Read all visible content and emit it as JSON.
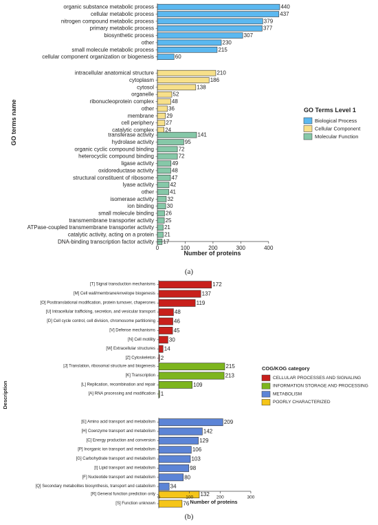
{
  "chart_data": [
    {
      "type": "bar",
      "orientation": "horizontal",
      "panel_label": "(a)",
      "ylabel": "GO terms name",
      "xlabel": "Number of proteins",
      "xlim": [
        0,
        460
      ],
      "xticks": [
        0,
        100,
        200,
        300,
        400
      ],
      "legend": {
        "title": "GO Terms Level 1",
        "placement": "right",
        "entries": [
          {
            "name": "Biological Process",
            "color": "#5BB8F0"
          },
          {
            "name": "Cellular Component",
            "color": "#F7E08A"
          },
          {
            "name": "Molecular Function",
            "color": "#86C8A8"
          }
        ]
      },
      "groups": [
        {
          "name": "Biological Process",
          "color": "#5BB8F0",
          "categories": [
            "organic substance metabolic process",
            "cellular metabolic process",
            "nitrogen compound metabolic process",
            "primary metabolic process",
            "biosynthetic process",
            "other",
            "small molecule metabolic process",
            "cellular component organization or biogenesis"
          ],
          "values": [
            440,
            437,
            379,
            377,
            307,
            230,
            215,
            60
          ]
        },
        {
          "name": "Cellular Component",
          "color": "#F7E08A",
          "categories": [
            "intracellular anatomical structure",
            "cytoplasm",
            "cytosol",
            "organelle",
            "ribonucleoprotein complex",
            "other",
            "membrane",
            "cell periphery",
            "catalytic complex"
          ],
          "values": [
            210,
            186,
            138,
            52,
            48,
            36,
            29,
            27,
            24
          ]
        },
        {
          "name": "Molecular Function",
          "color": "#86C8A8",
          "categories": [
            "transferase activity",
            "hydrolase activity",
            "organic cyclic compound binding",
            "heterocyclic compound binding",
            "ligase activity",
            "oxidoreductase activity",
            "structural constituent of ribosome",
            "lyase activity",
            "other",
            "isomerase activity",
            "ion binding",
            "small molecule binding",
            "transmembrane transporter activity",
            "ATPase-coupled transmembrane transporter activity",
            "catalytic activity, acting on a protein",
            "DNA-binding transcription factor activity"
          ],
          "values": [
            141,
            95,
            72,
            72,
            49,
            48,
            47,
            42,
            41,
            32,
            30,
            26,
            25,
            21,
            21,
            17
          ]
        }
      ]
    },
    {
      "type": "bar",
      "orientation": "horizontal",
      "panel_label": "(b)",
      "ylabel": "Description",
      "xlabel": "Number of proteins",
      "xlim": [
        0,
        310
      ],
      "xticks": [
        0,
        100,
        200,
        300
      ],
      "legend": {
        "title": "COG/KOG category",
        "placement": "right",
        "entries": [
          {
            "name": "CELLULAR PROCESSES AND SIGNALING",
            "color": "#C8201C"
          },
          {
            "name": "INFORMATION STORAGE AND PROCESSING",
            "color": "#7DB51E"
          },
          {
            "name": "METABOLISM",
            "color": "#5C84D6"
          },
          {
            "name": "POORLY CHARACTERIZED",
            "color": "#F5C518"
          }
        ]
      },
      "groups": [
        {
          "name": "CELLULAR PROCESSES AND SIGNALING",
          "color": "#C8201C",
          "categories": [
            "[T] Signal transduction mechanisms",
            "[M] Cell wall/membrane/envelope biogenesis",
            "[O] Posttranslational modification, protein turnover, chaperones",
            "[U] Intracellular trafficking, secretion, and vesicular transport",
            "[D] Cell cycle control, cell division, chromosome partitioning",
            "[V] Defense mechanisms",
            "[N] Cell motility",
            "[W] Extracellular structures",
            "[Z] Cytoskeleton"
          ],
          "values": [
            172,
            137,
            119,
            48,
            46,
            45,
            30,
            14,
            2
          ]
        },
        {
          "name": "INFORMATION STORAGE AND PROCESSING",
          "color": "#7DB51E",
          "categories": [
            "[J] Translation, ribosomal structure and biogenesis",
            "[K] Transcription",
            "[L] Replication, recombination and repair",
            "[A] RNA processing and modification"
          ],
          "values": [
            215,
            213,
            109,
            1
          ]
        },
        {
          "name": "METABOLISM",
          "color": "#5C84D6",
          "categories": [
            "[E] Amino acid transport and metabolism",
            "[H] Coenzyme transport and metabolism",
            "[C] Energy production and conversion",
            "[P] Inorganic ion transport and metabolism",
            "[G] Carbohydrate transport and metabolism",
            "[I] Lipid transport and metabolism",
            "[F] Nucleotide transport and metabolism",
            "[Q] Secondary metabolites biosynthesis, transport and catabolism"
          ],
          "values": [
            209,
            142,
            129,
            106,
            103,
            98,
            80,
            34
          ]
        },
        {
          "name": "POORLY CHARACTERIZED",
          "color": "#F5C518",
          "categories": [
            "[R] General function prediction only",
            "[S] Function unknown"
          ],
          "values": [
            132,
            76
          ]
        }
      ]
    }
  ]
}
